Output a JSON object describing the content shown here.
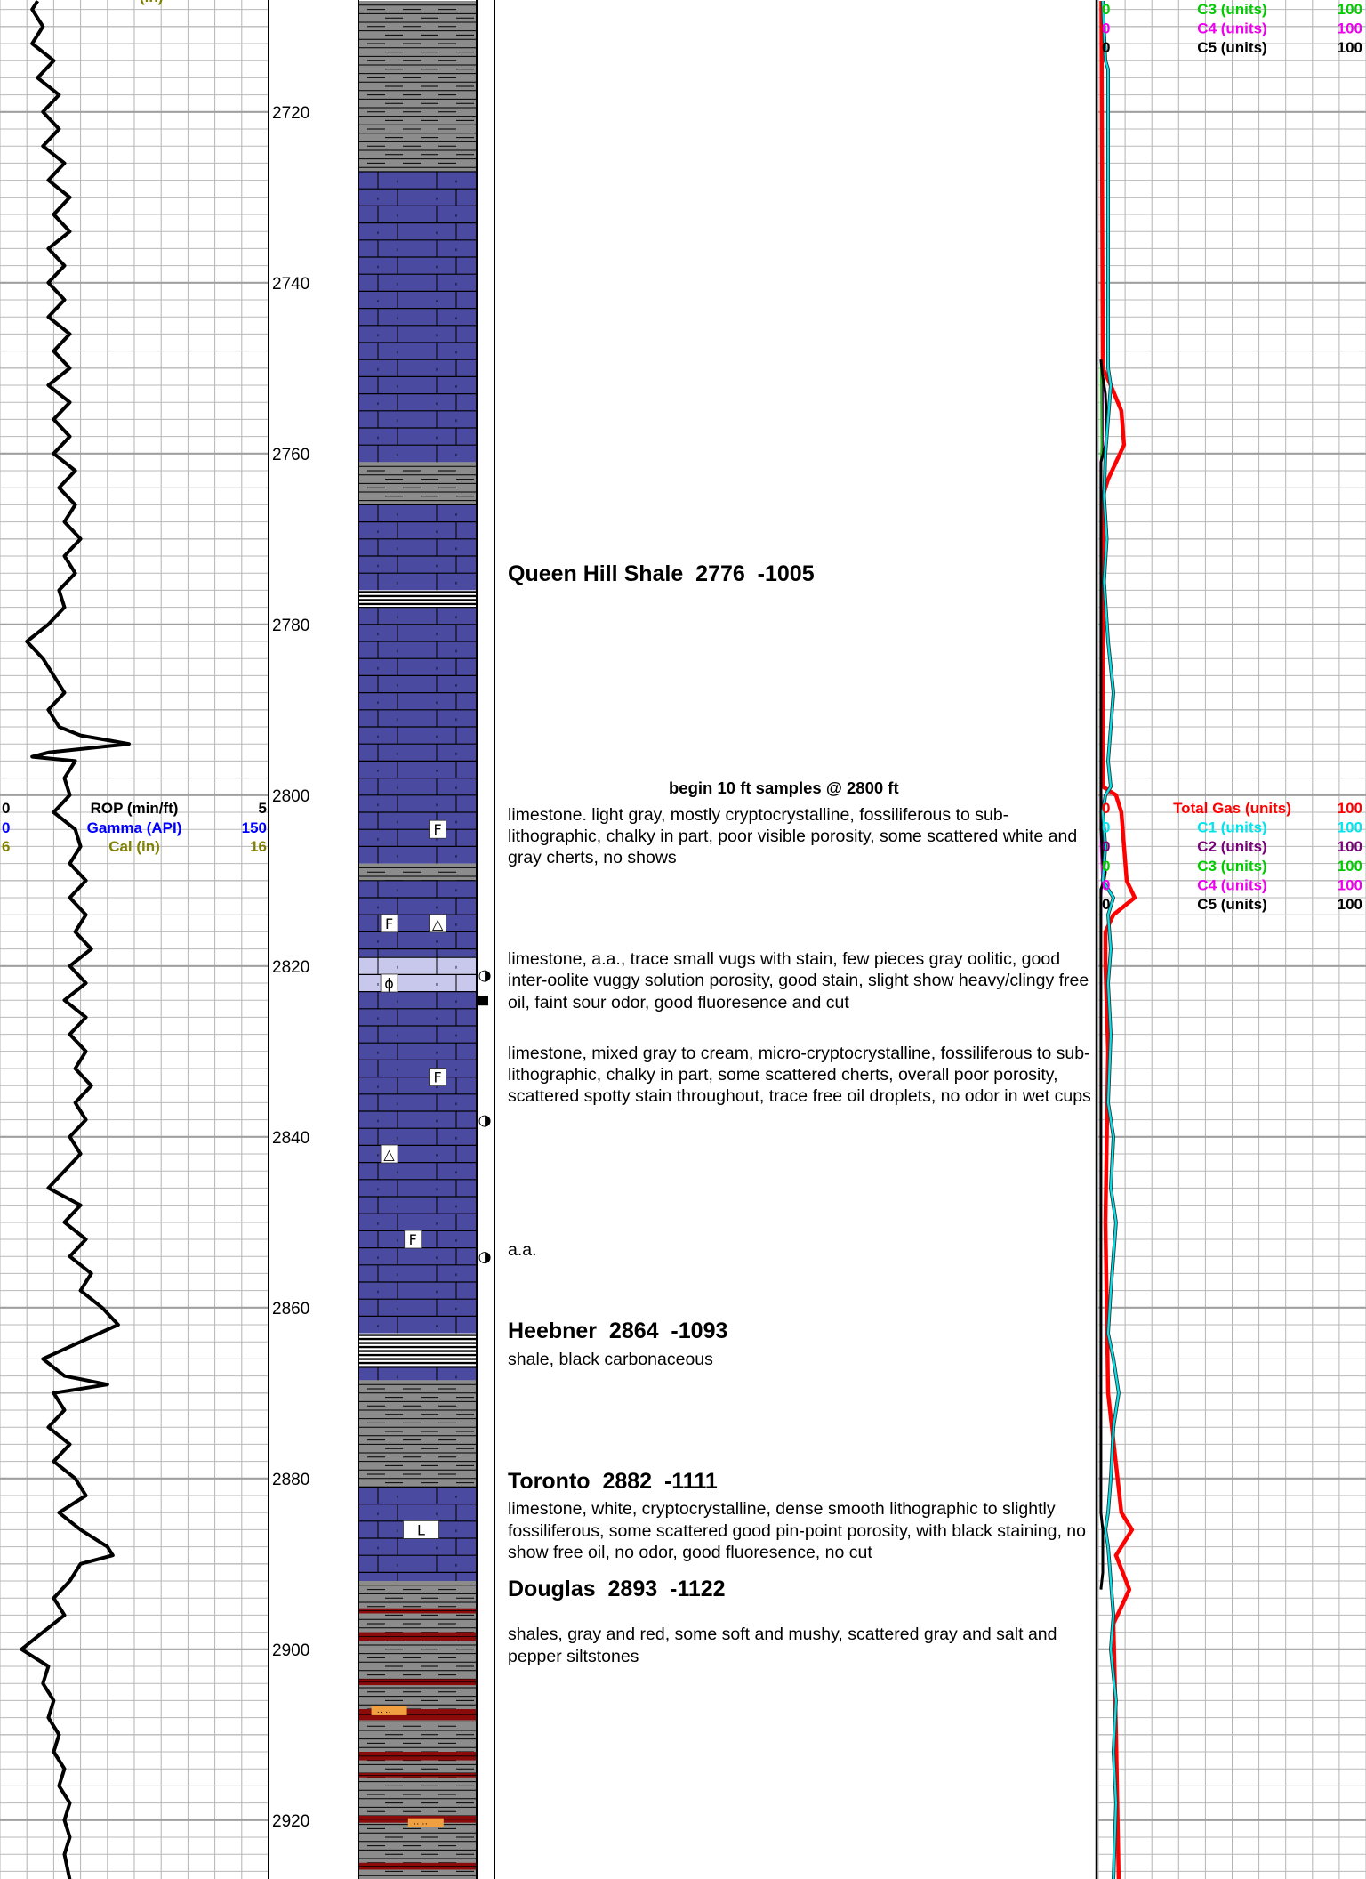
{
  "depth": {
    "start": 2707,
    "end": 2927,
    "labels": [
      2720,
      2740,
      2760,
      2780,
      2800,
      2820,
      2840,
      2860,
      2880,
      2900,
      2920
    ]
  },
  "colors": {
    "limestone": "#4a4aa0",
    "limestone_light": "#c8c8ec",
    "shale_gray": "#8c8c8c",
    "shale_red": "#8b0a0a",
    "siltstone": "#f0a040",
    "total_gas": "#ff0000",
    "c1": "#00e5ee",
    "c2": "#7a007a",
    "c3": "#00cc00",
    "c4": "#ee00ee",
    "c5": "#000000",
    "gamma": "#0000ff",
    "cal": "#808000"
  },
  "left_headers": {
    "rop": {
      "min": "0",
      "label": "ROP (min/ft)",
      "max": "5"
    },
    "gamma": {
      "min": "0",
      "label": "Gamma (API)",
      "max": "150"
    },
    "cal": {
      "min": "6",
      "label": "Cal (in)",
      "max": "16"
    }
  },
  "right_headers_top": [
    {
      "min": "0",
      "label": "C3 (units)",
      "max": "100"
    },
    {
      "min": "0",
      "label": "C4 (units)",
      "max": "100"
    },
    {
      "min": "0",
      "label": "C5 (units)",
      "max": "100"
    }
  ],
  "right_headers_mid": [
    {
      "min": "0",
      "label": "Total Gas (units)",
      "max": "100"
    },
    {
      "min": "0",
      "label": "C1 (units)",
      "max": "100"
    },
    {
      "min": "0",
      "label": "C2 (units)",
      "max": "100"
    },
    {
      "min": "0",
      "label": "C3 (units)",
      "max": "100"
    },
    {
      "min": "0",
      "label": "C4 (units)",
      "max": "100"
    },
    {
      "min": "0",
      "label": "C5 (units)",
      "max": "100"
    }
  ],
  "lithology": [
    {
      "top": 2707,
      "base": 2727,
      "type": "shale_gray"
    },
    {
      "top": 2727,
      "base": 2761,
      "type": "limestone"
    },
    {
      "top": 2761,
      "base": 2766,
      "type": "shale_gray"
    },
    {
      "top": 2766,
      "base": 2776,
      "type": "limestone"
    },
    {
      "top": 2776,
      "base": 2778,
      "type": "shale_black"
    },
    {
      "top": 2778,
      "base": 2808,
      "type": "limestone"
    },
    {
      "top": 2808,
      "base": 2810,
      "type": "shale_gray"
    },
    {
      "top": 2810,
      "base": 2819,
      "type": "limestone"
    },
    {
      "top": 2819,
      "base": 2823,
      "type": "limestone_light"
    },
    {
      "top": 2823,
      "base": 2863,
      "type": "limestone"
    },
    {
      "top": 2863,
      "base": 2867,
      "type": "shale_black"
    },
    {
      "top": 2867,
      "base": 2868.5,
      "type": "limestone"
    },
    {
      "top": 2868.5,
      "base": 2881,
      "type": "shale_gray"
    },
    {
      "top": 2881,
      "base": 2892,
      "type": "limestone"
    },
    {
      "top": 2892,
      "base": 2927,
      "type": "shale_mixed"
    }
  ],
  "symbols": [
    {
      "depth": 2804,
      "pos": 0.67,
      "label": "F"
    },
    {
      "depth": 2815,
      "pos": 0.26,
      "label": "F"
    },
    {
      "depth": 2815,
      "pos": 0.67,
      "label": "△"
    },
    {
      "depth": 2822,
      "pos": 0.26,
      "label": "ϕ"
    },
    {
      "depth": 2833,
      "pos": 0.67,
      "label": "F"
    },
    {
      "depth": 2842,
      "pos": 0.26,
      "label": "△"
    },
    {
      "depth": 2852,
      "pos": 0.46,
      "label": "F"
    },
    {
      "depth": 2886,
      "pos": 0.53,
      "label": "L"
    }
  ],
  "shows": [
    {
      "depth": 2821,
      "glyph": "◑"
    },
    {
      "depth": 2838,
      "glyph": "◑"
    },
    {
      "depth": 2854,
      "glyph": "◑"
    }
  ],
  "core_marker_depth": 2824,
  "sample_note": {
    "depth": 2799.3,
    "text": "begin 10 ft samples @ 2800 ft"
  },
  "formations": [
    {
      "depth": 2774.2,
      "text": "Queen Hill Shale  2776  -1005"
    },
    {
      "depth": 2862.8,
      "text": "Heebner  2864  -1093"
    },
    {
      "depth": 2880.4,
      "text": "Toronto  2882  -1111"
    },
    {
      "depth": 2893.0,
      "text": "Douglas  2893  -1122"
    }
  ],
  "descriptions": [
    {
      "depth": 2802.3,
      "text": "limestone. light gray, mostly cryptocrystalline, fossiliferous to sub-lithographic, chalky in part, poor visible porosity, some scattered white and gray cherts, no shows"
    },
    {
      "depth": 2819.2,
      "text": "limestone, a.a., trace small vugs with stain, few pieces gray oolitic, good inter-oolite vuggy solution porosity, good stain, slight show heavy/clingy free oil, faint sour odor, good fluoresence and cut"
    },
    {
      "depth": 2830.2,
      "text": "limestone, mixed gray to cream, micro-cryptocrystalline, fossiliferous to sub-lithographic, chalky in part, some scattered cherts, overall poor porosity, scattered spotty stain throughout, trace free oil droplets, no odor in wet cups"
    },
    {
      "depth": 2853.2,
      "text": "a.a."
    },
    {
      "depth": 2866.1,
      "text": "shale, black carbonaceous"
    },
    {
      "depth": 2883.6,
      "text": "limestone, white, cryptocrystalline, dense smooth lithographic to slightly fossiliferous, some scattered good pin-point porosity, with black staining, no show free oil, no odor, good fluoresence, no cut"
    },
    {
      "depth": 2898.3,
      "text": "shales, gray and red, some soft and mushy, scattered gray and salt and pepper siltstones"
    }
  ],
  "chart_data": {
    "type": "line",
    "title": "",
    "ylabel": "",
    "ylim": [
      2707,
      2927
    ],
    "series": [
      {
        "name": "ROP (min/ft)",
        "xlim": [
          0,
          5
        ],
        "points": [
          [
            2707,
            0.7
          ],
          [
            2708,
            0.6
          ],
          [
            2710,
            0.8
          ],
          [
            2712,
            0.6
          ],
          [
            2714,
            1.0
          ],
          [
            2716,
            0.7
          ],
          [
            2718,
            1.1
          ],
          [
            2720,
            0.8
          ],
          [
            2722,
            1.1
          ],
          [
            2724,
            0.8
          ],
          [
            2726,
            1.2
          ],
          [
            2728,
            0.9
          ],
          [
            2730,
            1.3
          ],
          [
            2732,
            1.0
          ],
          [
            2734,
            1.3
          ],
          [
            2736,
            0.9
          ],
          [
            2738,
            1.2
          ],
          [
            2740,
            0.9
          ],
          [
            2742,
            1.2
          ],
          [
            2744,
            0.9
          ],
          [
            2746,
            1.3
          ],
          [
            2748,
            1.0
          ],
          [
            2750,
            1.3
          ],
          [
            2752,
            0.9
          ],
          [
            2754,
            1.3
          ],
          [
            2756,
            1.0
          ],
          [
            2758,
            1.3
          ],
          [
            2760,
            1.0
          ],
          [
            2762,
            1.4
          ],
          [
            2764,
            1.1
          ],
          [
            2766,
            1.4
          ],
          [
            2768,
            1.2
          ],
          [
            2770,
            1.5
          ],
          [
            2772,
            1.2
          ],
          [
            2774,
            1.4
          ],
          [
            2776,
            1.1
          ],
          [
            2778,
            1.2
          ],
          [
            2780,
            0.9
          ],
          [
            2782,
            0.5
          ],
          [
            2784,
            0.8
          ],
          [
            2786,
            1.0
          ],
          [
            2788,
            1.2
          ],
          [
            2790,
            0.9
          ],
          [
            2792,
            1.1
          ],
          [
            2793,
            1.5
          ],
          [
            2794,
            2.4
          ],
          [
            2795,
            0.9
          ],
          [
            2795.5,
            0.6
          ],
          [
            2796,
            1.4
          ],
          [
            2798,
            1.2
          ],
          [
            2800,
            1.3
          ],
          [
            2802,
            1.0
          ],
          [
            2804,
            1.4
          ],
          [
            2806,
            1.5
          ],
          [
            2808,
            1.3
          ],
          [
            2810,
            1.6
          ],
          [
            2812,
            1.3
          ],
          [
            2814,
            1.6
          ],
          [
            2816,
            1.4
          ],
          [
            2818,
            1.7
          ],
          [
            2820,
            1.3
          ],
          [
            2822,
            1.6
          ],
          [
            2824,
            1.2
          ],
          [
            2826,
            1.6
          ],
          [
            2828,
            1.3
          ],
          [
            2830,
            1.6
          ],
          [
            2832,
            1.4
          ],
          [
            2834,
            1.7
          ],
          [
            2836,
            1.4
          ],
          [
            2838,
            1.6
          ],
          [
            2840,
            1.3
          ],
          [
            2842,
            1.5
          ],
          [
            2844,
            1.2
          ],
          [
            2846,
            0.9
          ],
          [
            2848,
            1.5
          ],
          [
            2850,
            1.2
          ],
          [
            2852,
            1.6
          ],
          [
            2854,
            1.3
          ],
          [
            2856,
            1.7
          ],
          [
            2858,
            1.5
          ],
          [
            2860,
            1.9
          ],
          [
            2862,
            2.2
          ],
          [
            2864,
            1.5
          ],
          [
            2866,
            0.8
          ],
          [
            2868,
            1.2
          ],
          [
            2869,
            2.0
          ],
          [
            2870,
            1.0
          ],
          [
            2872,
            1.2
          ],
          [
            2874,
            0.9
          ],
          [
            2876,
            1.3
          ],
          [
            2878,
            1.0
          ],
          [
            2880,
            1.4
          ],
          [
            2882,
            1.6
          ],
          [
            2884,
            1.1
          ],
          [
            2886,
            1.5
          ],
          [
            2888,
            2.0
          ],
          [
            2889,
            2.1
          ],
          [
            2890,
            1.5
          ],
          [
            2892,
            1.3
          ],
          [
            2894,
            1.0
          ],
          [
            2896,
            1.2
          ],
          [
            2898,
            0.8
          ],
          [
            2900,
            0.4
          ],
          [
            2902,
            0.9
          ],
          [
            2904,
            0.8
          ],
          [
            2906,
            1.0
          ],
          [
            2908,
            0.9
          ],
          [
            2910,
            1.1
          ],
          [
            2912,
            1.0
          ],
          [
            2914,
            1.2
          ],
          [
            2916,
            1.1
          ],
          [
            2918,
            1.3
          ],
          [
            2920,
            1.2
          ],
          [
            2922,
            1.3
          ],
          [
            2924,
            1.2
          ],
          [
            2927,
            1.3
          ]
        ]
      },
      {
        "name": "Total Gas (units)",
        "xlim": [
          0,
          100
        ],
        "points": [
          [
            2707,
            0.5
          ],
          [
            2750,
            1
          ],
          [
            2752,
            4
          ],
          [
            2755,
            8
          ],
          [
            2759,
            9
          ],
          [
            2761,
            6
          ],
          [
            2763,
            3
          ],
          [
            2765,
            1
          ],
          [
            2799,
            1
          ],
          [
            2800,
            6
          ],
          [
            2802,
            8
          ],
          [
            2806,
            9
          ],
          [
            2810,
            10
          ],
          [
            2812,
            13
          ],
          [
            2814,
            5
          ],
          [
            2816,
            2
          ],
          [
            2820,
            2
          ],
          [
            2830,
            3
          ],
          [
            2850,
            2
          ],
          [
            2870,
            3
          ],
          [
            2884,
            8
          ],
          [
            2886,
            12
          ],
          [
            2889,
            6
          ],
          [
            2893,
            11
          ],
          [
            2897,
            5
          ],
          [
            2910,
            6
          ],
          [
            2927,
            7
          ]
        ]
      },
      {
        "name": "C1 (units)",
        "xlim": [
          0,
          100
        ],
        "points": [
          [
            2707,
            1
          ],
          [
            2714,
            2
          ],
          [
            2715,
            3
          ],
          [
            2730,
            3
          ],
          [
            2748,
            3
          ],
          [
            2750,
            3
          ],
          [
            2752,
            4
          ],
          [
            2756,
            3
          ],
          [
            2760,
            2
          ],
          [
            2765,
            1.5
          ],
          [
            2770,
            2.5
          ],
          [
            2775,
            1.5
          ],
          [
            2782,
            3
          ],
          [
            2788,
            5
          ],
          [
            2792,
            4
          ],
          [
            2796,
            3
          ],
          [
            2799,
            4
          ],
          [
            2800,
            2
          ],
          [
            2802,
            1
          ],
          [
            2806,
            2
          ],
          [
            2810,
            1
          ],
          [
            2812,
            5
          ],
          [
            2814,
            3
          ],
          [
            2818,
            4
          ],
          [
            2822,
            3
          ],
          [
            2828,
            4
          ],
          [
            2836,
            3
          ],
          [
            2840,
            5
          ],
          [
            2846,
            4
          ],
          [
            2850,
            6
          ],
          [
            2858,
            4
          ],
          [
            2863,
            3
          ],
          [
            2866,
            5
          ],
          [
            2870,
            7
          ],
          [
            2874,
            5
          ],
          [
            2880,
            4
          ],
          [
            2884,
            3
          ],
          [
            2886,
            2
          ],
          [
            2888,
            3
          ],
          [
            2892,
            4
          ],
          [
            2896,
            5
          ],
          [
            2900,
            4
          ],
          [
            2906,
            6
          ],
          [
            2912,
            5
          ],
          [
            2918,
            6
          ],
          [
            2927,
            5
          ]
        ]
      },
      {
        "name": "C2 (units)",
        "xlim": [
          0,
          100
        ],
        "points": [
          [
            2749,
            0.5
          ],
          [
            2751,
            1
          ],
          [
            2759,
            1
          ],
          [
            2761,
            0.5
          ],
          [
            2800,
            0.5
          ],
          [
            2803,
            1
          ],
          [
            2808,
            1.5
          ],
          [
            2810,
            0.5
          ]
        ]
      },
      {
        "name": "C3 (units)",
        "xlim": [
          0,
          100
        ],
        "points": [
          [
            2749,
            0.3
          ],
          [
            2759,
            0.5
          ],
          [
            2761,
            0.3
          ]
        ]
      },
      {
        "name": "C4 (units)",
        "xlim": [
          0,
          100
        ],
        "points": [
          [
            2749,
            0.3
          ],
          [
            2751,
            0.8
          ],
          [
            2759,
            0.8
          ],
          [
            2761,
            0.3
          ],
          [
            2806,
            0.3
          ],
          [
            2810,
            0.8
          ],
          [
            2812,
            0.3
          ],
          [
            2884,
            0.3
          ],
          [
            2886,
            1
          ],
          [
            2891,
            1
          ],
          [
            2893,
            0.3
          ]
        ]
      },
      {
        "name": "C5 (units)",
        "xlim": [
          0,
          100
        ],
        "points": [
          [
            2749,
            0.3
          ],
          [
            2751,
            1
          ],
          [
            2753,
            2
          ],
          [
            2757,
            2.5
          ],
          [
            2759,
            2
          ],
          [
            2761,
            0.3
          ],
          [
            2804,
            0.3
          ],
          [
            2808,
            1
          ],
          [
            2809,
            2
          ],
          [
            2810,
            1.5
          ],
          [
            2811,
            0.3
          ],
          [
            2884,
            0.3
          ],
          [
            2886,
            1
          ],
          [
            2891,
            1
          ],
          [
            2893,
            0.3
          ]
        ]
      }
    ]
  }
}
